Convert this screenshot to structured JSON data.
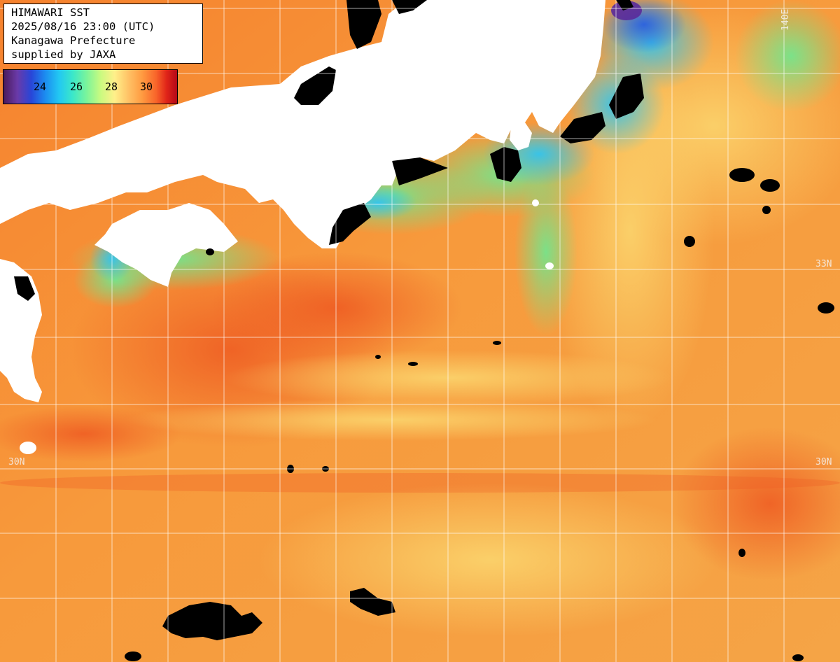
{
  "info_box": {
    "title": "HIMAWARI SST",
    "datetime": "2025/08/16 23:00 (UTC)",
    "region": "Kanagawa Prefecture",
    "credit": "supplied by JAXA"
  },
  "colorbar": {
    "ticks": [
      "24",
      "26",
      "28",
      "30"
    ]
  },
  "graticule_labels": {
    "lat_33_right": "33N",
    "lat_30_left": "30N",
    "lat_30_right": "30N",
    "lon_top": "140E"
  },
  "colors": {
    "warm_sea": "#f7a03c",
    "hot_sea": "#f2702a",
    "cool_sea": "#5fe08a",
    "cold_sea": "#3bc8e8",
    "land": "#ffffff",
    "missing": "#000000"
  }
}
